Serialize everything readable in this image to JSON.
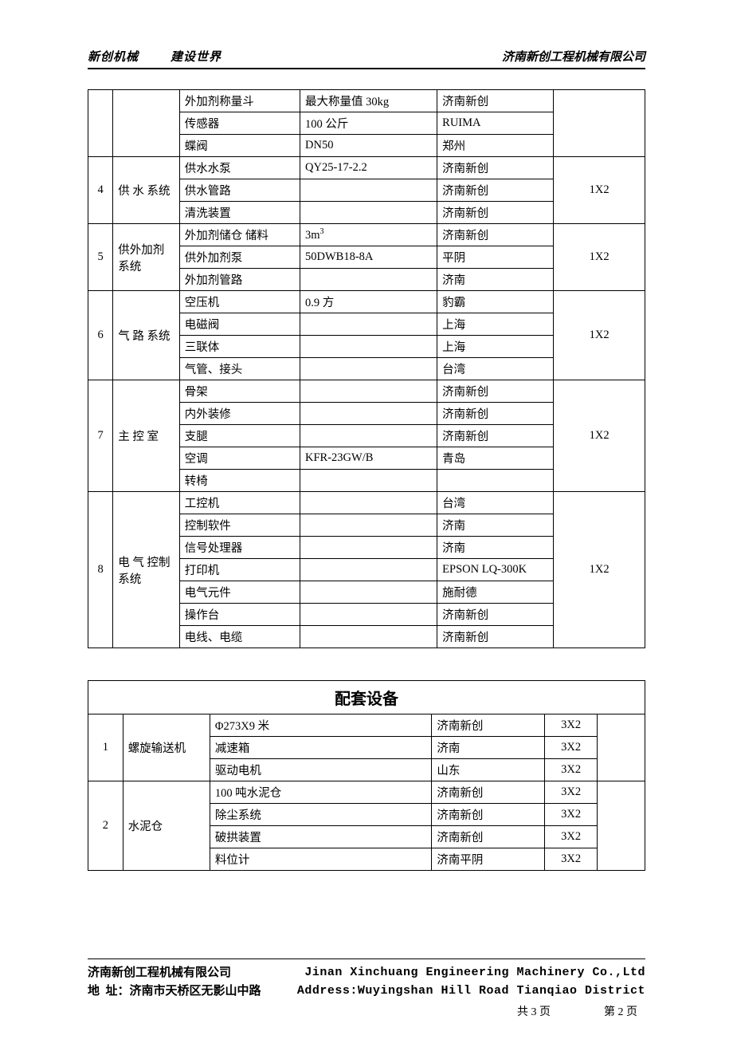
{
  "header": {
    "brand": "新创机械",
    "slogan": "建设世界",
    "company": "济南新创工程机械有限公司"
  },
  "table1": {
    "groups": [
      {
        "num": "",
        "name": "",
        "qty": "",
        "rows": [
          {
            "item": "外加剂称量斗",
            "spec": "最大称量值 30kg",
            "vendor": "济南新创"
          },
          {
            "item": "传感器",
            "spec": "100 公斤",
            "vendor": "RUIMA"
          },
          {
            "item": "蝶阀",
            "spec": "DN50",
            "vendor": "郑州"
          }
        ]
      },
      {
        "num": "4",
        "name": "供 水 系统",
        "qty": "1X2",
        "rows": [
          {
            "item": "供水水泵",
            "spec": "QY25-17-2.2",
            "vendor": "济南新创"
          },
          {
            "item": "供水管路",
            "spec": "",
            "vendor": "济南新创"
          },
          {
            "item": "清洗装置",
            "spec": "",
            "vendor": "济南新创"
          }
        ]
      },
      {
        "num": "5",
        "name": "供外加剂系统",
        "qty": "1X2",
        "rows": [
          {
            "item": "外加剂储仓 储料",
            "spec": "3m³",
            "vendor": "济南新创"
          },
          {
            "item": "供外加剂泵",
            "spec": "50DWB18-8A",
            "vendor": "平阴"
          },
          {
            "item": "外加剂管路",
            "spec": "",
            "vendor": "济南"
          }
        ]
      },
      {
        "num": "6",
        "name": "气 路 系统",
        "qty": "1X2",
        "rows": [
          {
            "item": "空压机",
            "spec": "0.9 方",
            "vendor": "豹霸"
          },
          {
            "item": "电磁阀",
            "spec": "",
            "vendor": "上海"
          },
          {
            "item": "三联体",
            "spec": "",
            "vendor": "上海"
          },
          {
            "item": "气管、接头",
            "spec": "",
            "vendor": "台湾"
          }
        ]
      },
      {
        "num": "7",
        "name": "主 控 室",
        "qty": "1X2",
        "rows": [
          {
            "item": "骨架",
            "spec": "",
            "vendor": "济南新创"
          },
          {
            "item": "内外装修",
            "spec": "",
            "vendor": "济南新创"
          },
          {
            "item": "支腿",
            "spec": "",
            "vendor": "济南新创"
          },
          {
            "item": "空调",
            "spec": "KFR-23GW/B",
            "vendor": "青岛"
          },
          {
            "item": "转椅",
            "spec": "",
            "vendor": ""
          }
        ]
      },
      {
        "num": "8",
        "name": "电 气 控制系统",
        "qty": "1X2",
        "rows": [
          {
            "item": "工控机",
            "spec": "",
            "vendor": "台湾"
          },
          {
            "item": "控制软件",
            "spec": "",
            "vendor": "济南"
          },
          {
            "item": "信号处理器",
            "spec": "",
            "vendor": "济南"
          },
          {
            "item": "打印机",
            "spec": "",
            "vendor": "EPSON LQ-300K"
          },
          {
            "item": "电气元件",
            "spec": "",
            "vendor": "施耐德"
          },
          {
            "item": "操作台",
            "spec": "",
            "vendor": "济南新创"
          },
          {
            "item": "电线、电缆",
            "spec": "",
            "vendor": "济南新创"
          }
        ]
      }
    ]
  },
  "table2": {
    "title": "配套设备",
    "groups": [
      {
        "num": "1",
        "name": "螺旋输送机",
        "rows": [
          {
            "item": "Φ273X9 米",
            "vendor": "济南新创",
            "qty": "3X2"
          },
          {
            "item": "减速箱",
            "vendor": "济南",
            "qty": "3X2"
          },
          {
            "item": "驱动电机",
            "vendor": "山东",
            "qty": "3X2"
          }
        ]
      },
      {
        "num": "2",
        "name": "水泥仓",
        "rows": [
          {
            "item": "100 吨水泥仓",
            "vendor": "济南新创",
            "qty": "3X2"
          },
          {
            "item": "除尘系统",
            "vendor": "济南新创",
            "qty": "3X2"
          },
          {
            "item": "破拱装置",
            "vendor": "济南新创",
            "qty": "3X2"
          },
          {
            "item": "料位计",
            "vendor": "济南平阴",
            "qty": "3X2"
          }
        ]
      }
    ]
  },
  "footer": {
    "company_cn": "济南新创工程机械有限公司",
    "address_cn_label": "地  址：",
    "address_cn": "济南市天桥区无影山中路",
    "company_en": "Jinan Xinchuang Engineering Machinery Co.,Ltd",
    "address_en": "Address:Wuyingshan Hill Road Tianqiao District",
    "page_total_label": "共",
    "page_total": "3",
    "page_unit": "页",
    "page_cur_label": "第",
    "page_cur": "2",
    "page_cur_unit": "页"
  }
}
